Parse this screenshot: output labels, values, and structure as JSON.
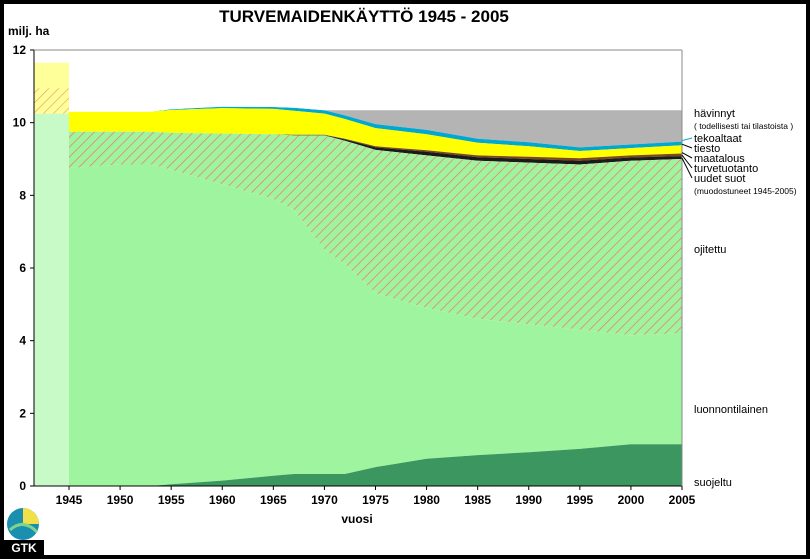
{
  "chart_data": {
    "type": "area",
    "title": "TURVEMAIDENKÄYTTÖ 1945 - 2005",
    "ylabel": "milj. ha",
    "xlabel": "vuosi",
    "ylim": [
      0,
      12
    ],
    "yticks": [
      "0",
      "2",
      "4",
      "6",
      "8",
      "10",
      "12"
    ],
    "xticks": [
      "1945",
      "1950",
      "1955",
      "1960",
      "1965",
      "1970",
      "1975",
      "1980",
      "1985",
      "1990",
      "1995",
      "2000",
      "2005"
    ],
    "stacking": "cumulative",
    "pre_1945_bar": {
      "label": "",
      "luonnontilainen": 10.25,
      "ojitettu": 10.95,
      "top": 11.65
    },
    "x": [
      1945,
      1950,
      1953,
      1955,
      1960,
      1965,
      1967,
      1970,
      1972,
      1975,
      1980,
      1985,
      1990,
      1995,
      2000,
      2005
    ],
    "series": [
      {
        "name": "suojeltu",
        "color": "#3c9660",
        "values": [
          0.0,
          0.0,
          0.0,
          0.05,
          0.15,
          0.28,
          0.33,
          0.33,
          0.33,
          0.52,
          0.75,
          0.85,
          0.93,
          1.02,
          1.15,
          1.15
        ]
      },
      {
        "name": "luonnontilainen",
        "color": "#9ff59f",
        "values": [
          8.75,
          8.85,
          8.85,
          8.7,
          8.3,
          7.9,
          7.6,
          6.5,
          6.1,
          5.3,
          4.9,
          4.6,
          4.45,
          4.3,
          4.15,
          4.2
        ]
      },
      {
        "name": "ojitettu",
        "color": "#e8a080",
        "pattern": "hatched",
        "values": [
          9.75,
          9.75,
          9.75,
          9.72,
          9.7,
          9.68,
          9.65,
          9.65,
          9.5,
          9.25,
          9.1,
          8.95,
          8.9,
          8.85,
          8.95,
          9.0
        ]
      },
      {
        "name": "uudet suot",
        "sublabel": "(muodostuneet 1945-2005)",
        "color": "#b0b0b0",
        "values": [
          9.75,
          9.75,
          9.75,
          9.72,
          9.7,
          9.68,
          9.65,
          9.65,
          9.5,
          9.25,
          9.1,
          8.95,
          8.9,
          8.85,
          8.95,
          9.0
        ]
      },
      {
        "name": "turvetuotanto",
        "color": "#1a1a1a",
        "values": [
          9.75,
          9.75,
          9.75,
          9.72,
          9.7,
          9.68,
          9.66,
          9.66,
          9.54,
          9.32,
          9.2,
          9.05,
          9.0,
          8.95,
          9.04,
          9.08
        ]
      },
      {
        "name": "maatalous",
        "color": "#7a4a1a",
        "values": [
          9.75,
          9.75,
          9.75,
          9.72,
          9.7,
          9.68,
          9.67,
          9.67,
          9.56,
          9.35,
          9.24,
          9.1,
          9.06,
          9.02,
          9.1,
          9.15
        ]
      },
      {
        "name": "tiesto",
        "color": "#ffff00",
        "values": [
          10.3,
          10.3,
          10.3,
          10.35,
          10.4,
          10.38,
          10.33,
          10.25,
          10.1,
          9.85,
          9.68,
          9.45,
          9.35,
          9.22,
          9.3,
          9.38
        ]
      },
      {
        "name": "tekoaltaat",
        "color": "#00a8d0",
        "values": [
          10.3,
          10.3,
          10.3,
          10.37,
          10.44,
          10.43,
          10.41,
          10.34,
          10.2,
          9.96,
          9.8,
          9.56,
          9.46,
          9.32,
          9.4,
          9.48
        ]
      },
      {
        "name": "hävinnyt",
        "sublabel": "( todellisesti tai tilastoista )",
        "color": "#b4b4b4",
        "values": [
          10.3,
          10.3,
          10.3,
          10.37,
          10.44,
          10.43,
          10.41,
          10.34,
          10.34,
          10.34,
          10.34,
          10.34,
          10.34,
          10.34,
          10.34,
          10.34
        ]
      }
    ]
  },
  "logo": {
    "text": "GTK"
  }
}
